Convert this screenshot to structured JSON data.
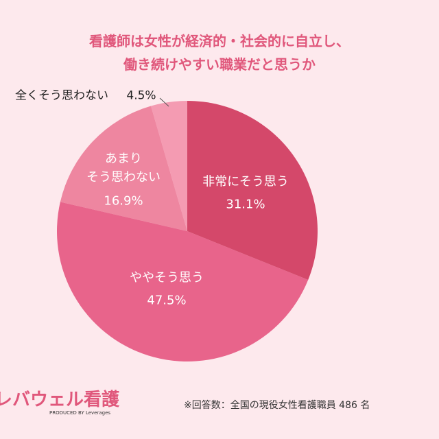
{
  "chart_data": {
    "type": "pie",
    "title": [
      "看護師は女性が経済的・社会的に自立し、",
      "働き続けやすい職業だと思うか"
    ],
    "categories": [
      "非常にそう思う",
      "ややそう思う",
      "あまり\nそう思わない",
      "全くそう思わない"
    ],
    "values": [
      31.1,
      47.5,
      16.9,
      4.5
    ],
    "value_labels": [
      "31.1%",
      "47.5%",
      "16.9%",
      "4.5%"
    ],
    "colors": [
      "#d4486a",
      "#e8648b",
      "#ee86a0",
      "#f49bb2"
    ],
    "note": "※回答数：全国の現役女性看護職員 486 名",
    "logo": "レバウェル看護",
    "logo_sub": "PRODUCED BY Leverages"
  }
}
